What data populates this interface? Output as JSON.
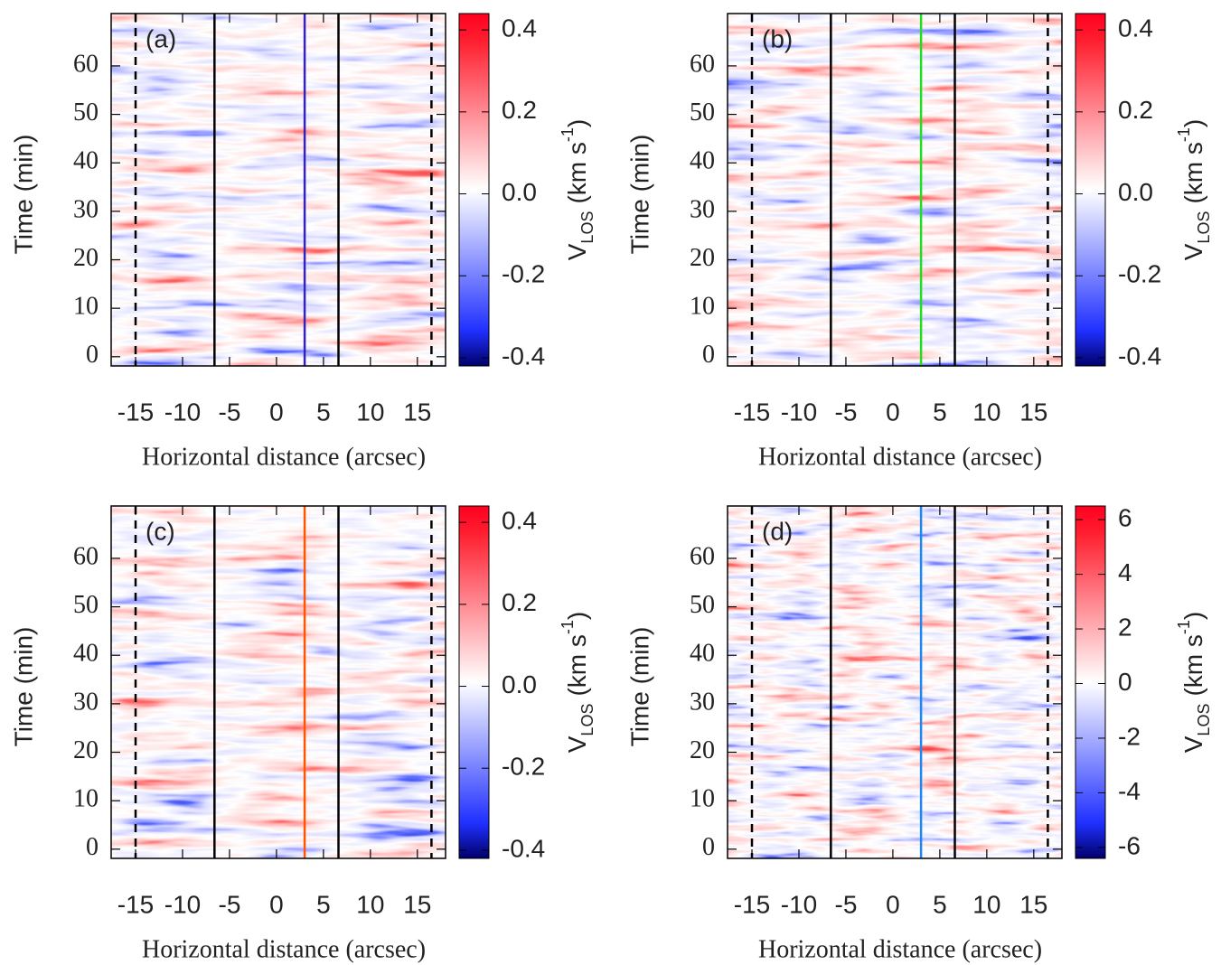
{
  "chart_data": [
    {
      "type": "heatmap",
      "panel_label": "(a)",
      "xlabel": "Horizontal distance (arcsec)",
      "ylabel": "Time (min)",
      "xlim": [
        -17.6,
        18
      ],
      "ylim": [
        -1.9,
        70.8
      ],
      "xticks": [
        -15,
        -10,
        -5,
        0,
        5,
        10,
        15
      ],
      "yticks": [
        0,
        10,
        20,
        30,
        40,
        50,
        60
      ],
      "vlines": [
        {
          "x": -15,
          "style": "dashed",
          "color": "#000000"
        },
        {
          "x": -6.6,
          "style": "solid",
          "color": "#000000"
        },
        {
          "x": 3,
          "style": "solid",
          "color": "#3322bb"
        },
        {
          "x": 6.6,
          "style": "solid",
          "color": "#000000"
        },
        {
          "x": 16.5,
          "style": "dashed",
          "color": "#000000"
        }
      ],
      "colorbar": {
        "clim": [
          -0.42,
          0.44
        ],
        "ticks": [
          0.4,
          0.2,
          {
            "value": 0,
            "label": "0.0"
          },
          -0.2,
          -0.4
        ],
        "label": {
          "symbol": "V",
          "subscript": "LOS",
          "unit": "(km s",
          "superscript": "-1",
          "close": ")"
        }
      }
    },
    {
      "type": "heatmap",
      "panel_label": "(b)",
      "xlabel": "Horizontal distance (arcsec)",
      "ylabel": "Time (min)",
      "xlim": [
        -17.6,
        18
      ],
      "ylim": [
        -1.9,
        70.8
      ],
      "xticks": [
        -15,
        -10,
        -5,
        0,
        5,
        10,
        15
      ],
      "yticks": [
        0,
        10,
        20,
        30,
        40,
        50,
        60
      ],
      "vlines": [
        {
          "x": -15,
          "style": "dashed",
          "color": "#000000"
        },
        {
          "x": -6.6,
          "style": "solid",
          "color": "#000000"
        },
        {
          "x": 3,
          "style": "solid",
          "color": "#22dd22"
        },
        {
          "x": 6.6,
          "style": "solid",
          "color": "#000000"
        },
        {
          "x": 16.5,
          "style": "dashed",
          "color": "#000000"
        }
      ],
      "colorbar": {
        "clim": [
          -0.42,
          0.44
        ],
        "ticks": [
          0.4,
          0.2,
          {
            "value": 0,
            "label": "0.0"
          },
          -0.2,
          -0.4
        ],
        "label": {
          "symbol": "V",
          "subscript": "LOS",
          "unit": "(km s",
          "superscript": "-1",
          "close": ")"
        }
      }
    },
    {
      "type": "heatmap",
      "panel_label": "(c)",
      "xlabel": "Horizontal distance (arcsec)",
      "ylabel": "Time (min)",
      "xlim": [
        -17.6,
        18
      ],
      "ylim": [
        -1.9,
        70.8
      ],
      "xticks": [
        -15,
        -10,
        -5,
        0,
        5,
        10,
        15
      ],
      "yticks": [
        0,
        10,
        20,
        30,
        40,
        50,
        60
      ],
      "vlines": [
        {
          "x": -15,
          "style": "dashed",
          "color": "#000000"
        },
        {
          "x": -6.6,
          "style": "solid",
          "color": "#000000"
        },
        {
          "x": 3,
          "style": "solid",
          "color": "#ff5500"
        },
        {
          "x": 6.6,
          "style": "solid",
          "color": "#000000"
        },
        {
          "x": 16.5,
          "style": "dashed",
          "color": "#000000"
        }
      ],
      "colorbar": {
        "clim": [
          -0.42,
          0.44
        ],
        "ticks": [
          0.4,
          0.2,
          {
            "value": 0,
            "label": "0.0"
          },
          -0.2,
          -0.4
        ],
        "label": {
          "symbol": "V",
          "subscript": "LOS",
          "unit": "(km s",
          "superscript": "-1",
          "close": ")"
        }
      }
    },
    {
      "type": "heatmap",
      "panel_label": "(d)",
      "xlabel": "Horizontal distance (arcsec)",
      "ylabel": "Time (min)",
      "xlim": [
        -17.6,
        18
      ],
      "ylim": [
        -1.9,
        70.8
      ],
      "xticks": [
        -15,
        -10,
        -5,
        0,
        5,
        10,
        15
      ],
      "yticks": [
        0,
        10,
        20,
        30,
        40,
        50,
        60
      ],
      "vlines": [
        {
          "x": -15,
          "style": "dashed",
          "color": "#000000"
        },
        {
          "x": -6.6,
          "style": "solid",
          "color": "#000000"
        },
        {
          "x": 3,
          "style": "solid",
          "color": "#1e88ee"
        },
        {
          "x": 6.6,
          "style": "solid",
          "color": "#000000"
        },
        {
          "x": 16.5,
          "style": "dashed",
          "color": "#000000"
        }
      ],
      "colorbar": {
        "clim": [
          -6.4,
          6.5
        ],
        "ticks": [
          6,
          4,
          2,
          0,
          -2,
          -4,
          -6
        ],
        "label": {
          "symbol": "V",
          "subscript": "LOS",
          "unit": "(km s",
          "superscript": "-1",
          "close": ")"
        }
      }
    }
  ]
}
